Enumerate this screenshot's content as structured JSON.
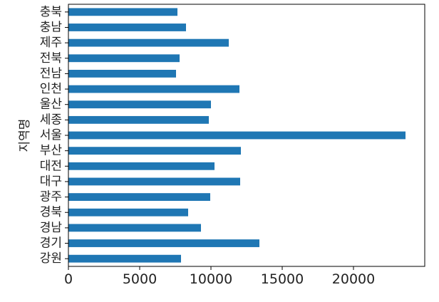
{
  "chart_data": {
    "type": "bar",
    "orientation": "horizontal",
    "ylabel": "지역명",
    "xlabel": "",
    "title": "",
    "grid": false,
    "xlim": [
      0,
      25000
    ],
    "xticks": [
      0,
      5000,
      10000,
      15000,
      20000
    ],
    "xtick_labels": [
      "0",
      "5000",
      "10000",
      "15000",
      "20000"
    ],
    "categories": [
      "충북",
      "충남",
      "제주",
      "전북",
      "전남",
      "인천",
      "울산",
      "세종",
      "서울",
      "부산",
      "대전",
      "대구",
      "광주",
      "경북",
      "경남",
      "경기",
      "강원"
    ],
    "values": [
      7650,
      8250,
      11250,
      7800,
      7550,
      12000,
      10000,
      9850,
      23650,
      12100,
      10250,
      12050,
      9950,
      8400,
      9300,
      13400,
      7900
    ],
    "bar_color": "#1f77b4"
  }
}
